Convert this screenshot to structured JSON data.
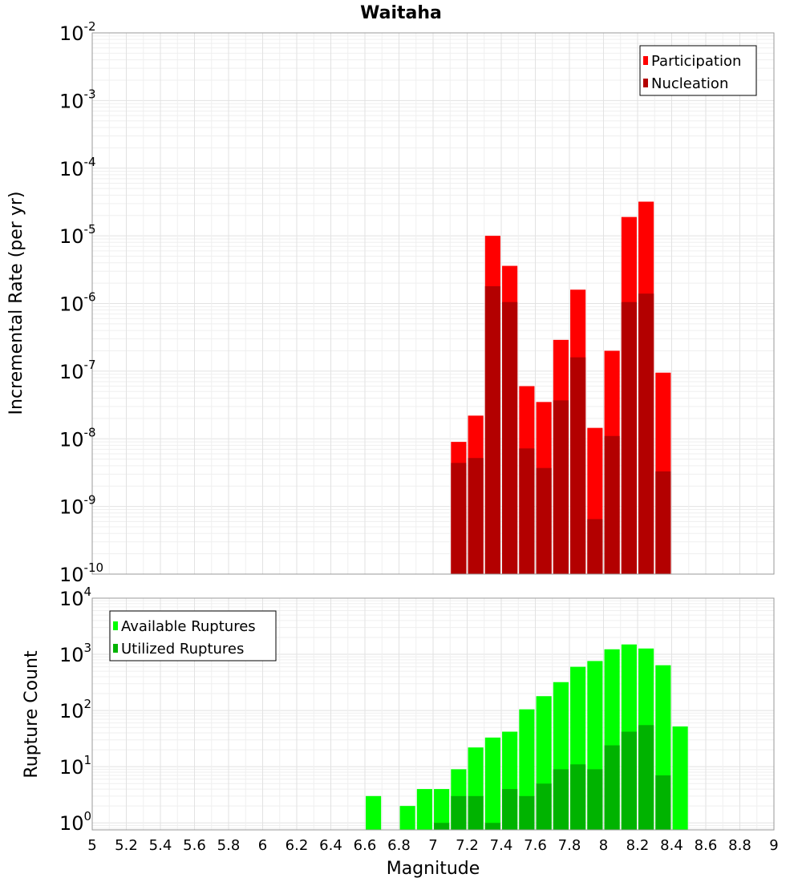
{
  "chart_data": [
    {
      "type": "bar",
      "title": "Waitaha",
      "ylabel": "Incremental Rate (per yr)",
      "xlabel": "",
      "yscale": "log",
      "ylim": [
        1e-10,
        0.01
      ],
      "xlim": [
        5,
        9
      ],
      "yticks": [
        {
          "base": "10",
          "exp": "-2",
          "value": 0.01
        },
        {
          "base": "10",
          "exp": "-3",
          "value": 0.001
        },
        {
          "base": "10",
          "exp": "-4",
          "value": 0.0001
        },
        {
          "base": "10",
          "exp": "-5",
          "value": 1e-05
        },
        {
          "base": "10",
          "exp": "-6",
          "value": 1e-06
        },
        {
          "base": "10",
          "exp": "-7",
          "value": 1e-07
        },
        {
          "base": "10",
          "exp": "-8",
          "value": 1e-08
        },
        {
          "base": "10",
          "exp": "-9",
          "value": 1e-09
        },
        {
          "base": "10",
          "exp": "-10",
          "value": 1e-10
        }
      ],
      "legend_position": "top-right",
      "bar_width": 0.09,
      "x": [
        7.15,
        7.25,
        7.35,
        7.45,
        7.55,
        7.65,
        7.75,
        7.85,
        7.95,
        8.05,
        8.15,
        8.25,
        8.35
      ],
      "series": [
        {
          "name": "Participation",
          "color": "#ff0000",
          "values": [
            9e-09,
            2.2e-08,
            1e-05,
            3.6e-06,
            6e-08,
            3.5e-08,
            2.9e-07,
            1.6e-06,
            1.45e-08,
            2e-07,
            1.9e-05,
            3.2e-05,
            9.5e-08
          ]
        },
        {
          "name": "Nucleation",
          "color": "#b30000",
          "values": [
            4.4e-09,
            5.2e-09,
            1.8e-06,
            1.05e-06,
            7.2e-09,
            3.7e-09,
            3.7e-08,
            1.6e-07,
            6.5e-10,
            1.1e-08,
            1.05e-06,
            1.4e-06,
            3.3e-09
          ]
        }
      ]
    },
    {
      "type": "bar",
      "title": "",
      "ylabel": "Rupture Count",
      "xlabel": "Magnitude",
      "yscale": "log",
      "ylim": [
        0.75,
        10000
      ],
      "xlim": [
        5,
        9
      ],
      "yticks": [
        {
          "base": "10",
          "exp": "4",
          "value": 10000
        },
        {
          "base": "10",
          "exp": "3",
          "value": 1000
        },
        {
          "base": "10",
          "exp": "2",
          "value": 100
        },
        {
          "base": "10",
          "exp": "1",
          "value": 10
        },
        {
          "base": "10",
          "exp": "0",
          "value": 1
        }
      ],
      "xticks": [
        "5",
        "5.2",
        "5.4",
        "5.6",
        "5.8",
        "6",
        "6.2",
        "6.4",
        "6.6",
        "6.8",
        "7",
        "7.2",
        "7.4",
        "7.6",
        "7.8",
        "8",
        "8.2",
        "8.4",
        "8.6",
        "8.8",
        "9"
      ],
      "legend_position": "top-left",
      "bar_width": 0.09,
      "x": [
        6.65,
        6.85,
        6.95,
        7.05,
        7.15,
        7.25,
        7.35,
        7.45,
        7.55,
        7.65,
        7.75,
        7.85,
        7.95,
        8.05,
        8.15,
        8.25,
        8.35,
        8.45
      ],
      "series": [
        {
          "name": "Available Ruptures",
          "color": "#00ff00",
          "values": [
            3,
            2,
            4,
            4,
            9,
            22,
            33,
            42,
            105,
            180,
            320,
            600,
            760,
            1230,
            1500,
            1270,
            640,
            52
          ]
        },
        {
          "name": "Utilized Ruptures",
          "color": "#00b300",
          "values": [
            null,
            null,
            null,
            1,
            3,
            3,
            1,
            4,
            3,
            5,
            9,
            11,
            9,
            24,
            42,
            55,
            7,
            null
          ]
        }
      ]
    }
  ]
}
